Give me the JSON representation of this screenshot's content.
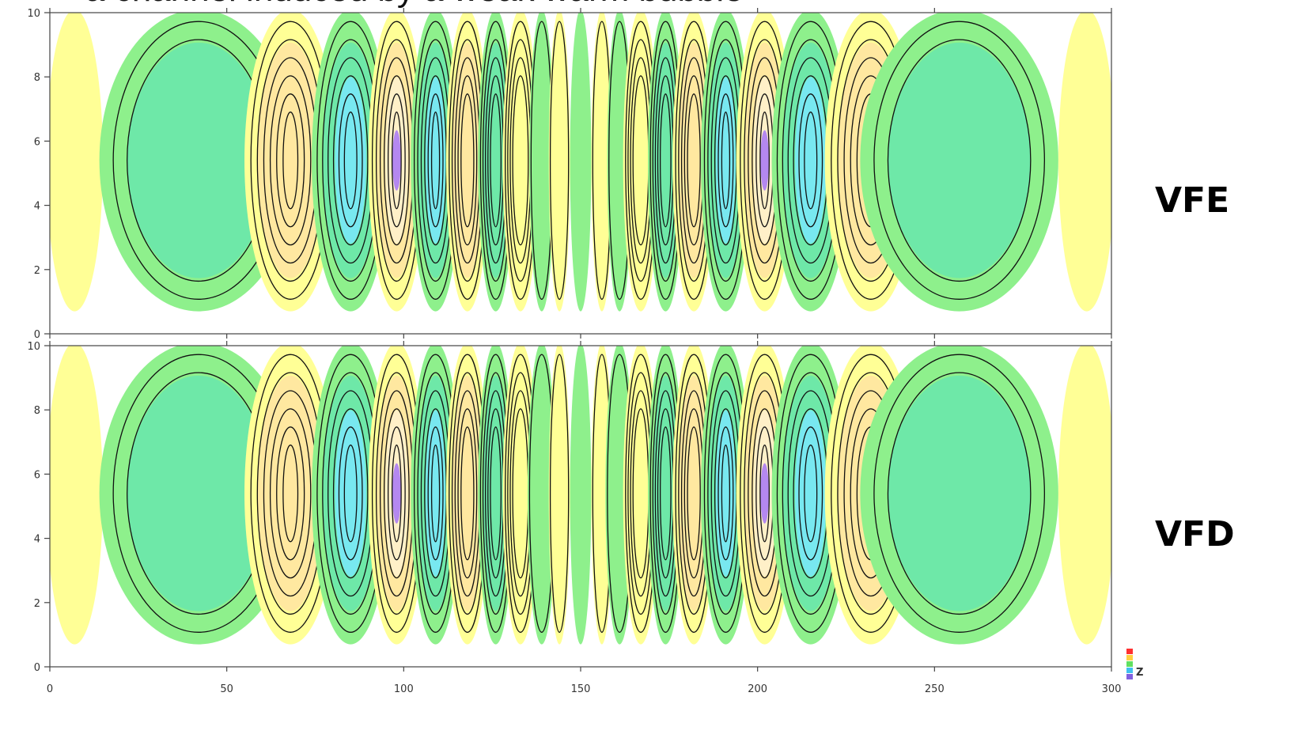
{
  "title": "a channel induced by a weak warm bubble",
  "panel_labels": [
    "VFE",
    "VFD"
  ],
  "corner_mark": "Z",
  "chart_data": [
    {
      "type": "heatmap",
      "name": "VFE",
      "xlim": [
        0,
        300
      ],
      "ylim": [
        0,
        10
      ],
      "xticks": [
        "0",
        "50",
        "100",
        "150",
        "200",
        "250",
        "300"
      ],
      "yticks": [
        "0",
        "2",
        "4",
        "6",
        "8",
        "10"
      ],
      "grid": false,
      "colors": {
        "yellow": "#ffff96",
        "green": "#8ef08c",
        "cyan": "#78e8f0",
        "tan": "#fff0c8"
      },
      "cells": [
        {
          "x": 7,
          "w": 8,
          "c": 1,
          "s": 0,
          "n": 0
        },
        {
          "x": 42,
          "w": 28,
          "c": 2,
          "s": 1,
          "n": 2
        },
        {
          "x": 68,
          "w": 13,
          "c": 1,
          "s": 1,
          "n": 6
        },
        {
          "x": 85,
          "w": 11,
          "c": 2,
          "s": 2,
          "n": 6
        },
        {
          "x": 98,
          "w": 8,
          "c": 1,
          "s": 3,
          "n": 6
        },
        {
          "x": 109,
          "w": 7,
          "c": 2,
          "s": 2,
          "n": 6
        },
        {
          "x": 118,
          "w": 6,
          "c": 1,
          "s": 1,
          "n": 5
        },
        {
          "x": 126,
          "w": 5,
          "c": 2,
          "s": 1,
          "n": 5
        },
        {
          "x": 133,
          "w": 5,
          "c": 1,
          "s": 0,
          "n": 4
        },
        {
          "x": 139,
          "w": 3.5,
          "c": 2,
          "s": 0,
          "n": 1
        },
        {
          "x": 144,
          "w": 3,
          "c": 1,
          "s": 0,
          "n": 1
        },
        {
          "x": 150,
          "w": 3,
          "c": 2,
          "s": 0,
          "n": 0
        },
        {
          "x": 156,
          "w": 3,
          "c": 1,
          "s": 0,
          "n": 1
        },
        {
          "x": 161,
          "w": 3.5,
          "c": 2,
          "s": 0,
          "n": 1
        },
        {
          "x": 167,
          "w": 5,
          "c": 1,
          "s": 0,
          "n": 4
        },
        {
          "x": 174,
          "w": 5,
          "c": 2,
          "s": 1,
          "n": 5
        },
        {
          "x": 182,
          "w": 6,
          "c": 1,
          "s": 1,
          "n": 5
        },
        {
          "x": 191,
          "w": 7,
          "c": 2,
          "s": 2,
          "n": 6
        },
        {
          "x": 202,
          "w": 8,
          "c": 1,
          "s": 3,
          "n": 6
        },
        {
          "x": 215,
          "w": 11,
          "c": 2,
          "s": 2,
          "n": 6
        },
        {
          "x": 232,
          "w": 13,
          "c": 1,
          "s": 1,
          "n": 6
        },
        {
          "x": 257,
          "w": 28,
          "c": 2,
          "s": 1,
          "n": 2
        },
        {
          "x": 293,
          "w": 8,
          "c": 1,
          "s": 0,
          "n": 0
        }
      ]
    },
    {
      "type": "heatmap",
      "name": "VFD",
      "xlim": [
        0,
        300
      ],
      "ylim": [
        0,
        10
      ],
      "xticks": [
        "0",
        "50",
        "100",
        "150",
        "200",
        "250",
        "300"
      ],
      "yticks": [
        "0",
        "2",
        "4",
        "6",
        "8",
        "10"
      ],
      "grid": false,
      "colors": {
        "yellow": "#ffff96",
        "green": "#8ef08c",
        "cyan": "#78e8f0",
        "tan": "#fff0c8"
      },
      "cells": [
        {
          "x": 7,
          "w": 8,
          "c": 1,
          "s": 0,
          "n": 0
        },
        {
          "x": 42,
          "w": 28,
          "c": 2,
          "s": 1,
          "n": 2
        },
        {
          "x": 68,
          "w": 13,
          "c": 1,
          "s": 1,
          "n": 6
        },
        {
          "x": 85,
          "w": 11,
          "c": 2,
          "s": 2,
          "n": 6
        },
        {
          "x": 98,
          "w": 8,
          "c": 1,
          "s": 3,
          "n": 6
        },
        {
          "x": 109,
          "w": 7,
          "c": 2,
          "s": 2,
          "n": 6
        },
        {
          "x": 118,
          "w": 6,
          "c": 1,
          "s": 1,
          "n": 5
        },
        {
          "x": 126,
          "w": 5,
          "c": 2,
          "s": 1,
          "n": 5
        },
        {
          "x": 133,
          "w": 5,
          "c": 1,
          "s": 0,
          "n": 4
        },
        {
          "x": 139,
          "w": 4,
          "c": 2,
          "s": 0,
          "n": 1
        },
        {
          "x": 144,
          "w": 3,
          "c": 1,
          "s": 0,
          "n": 1
        },
        {
          "x": 150,
          "w": 3,
          "c": 2,
          "s": 0,
          "n": 0
        },
        {
          "x": 156,
          "w": 3,
          "c": 1,
          "s": 0,
          "n": 1
        },
        {
          "x": 161,
          "w": 4,
          "c": 2,
          "s": 0,
          "n": 1
        },
        {
          "x": 167,
          "w": 5,
          "c": 1,
          "s": 0,
          "n": 4
        },
        {
          "x": 174,
          "w": 5,
          "c": 2,
          "s": 1,
          "n": 5
        },
        {
          "x": 182,
          "w": 6,
          "c": 1,
          "s": 1,
          "n": 5
        },
        {
          "x": 191,
          "w": 7,
          "c": 2,
          "s": 2,
          "n": 6
        },
        {
          "x": 202,
          "w": 8,
          "c": 1,
          "s": 3,
          "n": 6
        },
        {
          "x": 215,
          "w": 11,
          "c": 2,
          "s": 2,
          "n": 6
        },
        {
          "x": 232,
          "w": 13,
          "c": 1,
          "s": 1,
          "n": 6
        },
        {
          "x": 257,
          "w": 28,
          "c": 2,
          "s": 1,
          "n": 2
        },
        {
          "x": 293,
          "w": 8,
          "c": 1,
          "s": 0,
          "n": 0
        }
      ]
    }
  ]
}
